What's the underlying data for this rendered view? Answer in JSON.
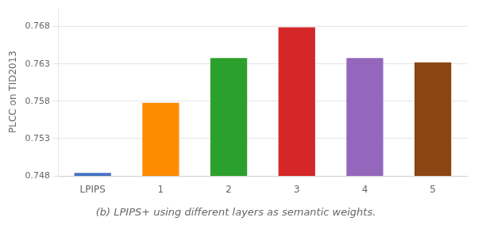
{
  "chart_data": {
    "type": "bar",
    "categories": [
      "LPIPS",
      "1",
      "2",
      "3",
      "4",
      "5"
    ],
    "values": [
      0.7484,
      0.7578,
      0.7638,
      0.7679,
      0.7638,
      0.7632
    ],
    "colors": [
      "#4472c4",
      "#ff8c00",
      "#2ca02c",
      "#d62728",
      "#9467bd",
      "#8b4513"
    ],
    "ylabel": "PLCC on TID2013",
    "caption": "(b) LPIPS+ using different layers as semantic weights.",
    "ylim": [
      0.748,
      0.7705
    ],
    "yticks": [
      0.748,
      0.753,
      0.758,
      0.763,
      0.768
    ],
    "grid": true
  }
}
